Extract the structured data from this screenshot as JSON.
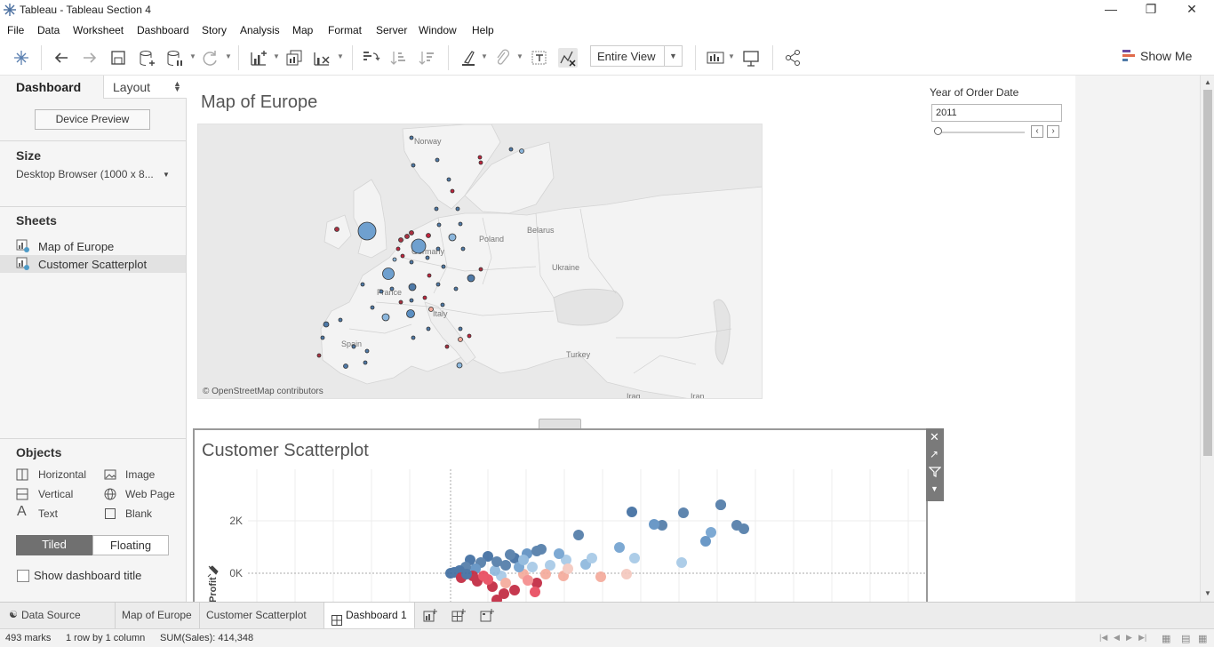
{
  "window": {
    "title": "Tableau - Tableau Section 4"
  },
  "menu": [
    "File",
    "Data",
    "Worksheet",
    "Dashboard",
    "Story",
    "Analysis",
    "Map",
    "Format",
    "Server",
    "Window",
    "Help"
  ],
  "toolbar": {
    "fit_value": "Entire View",
    "show_me": "Show Me"
  },
  "left_panel": {
    "tabs": {
      "dashboard": "Dashboard",
      "layout": "Layout"
    },
    "device_preview": "Device Preview",
    "size_heading": "Size",
    "size_value": "Desktop Browser (1000 x 8...",
    "sheets_heading": "Sheets",
    "sheets": [
      "Map of Europe",
      "Customer Scatterplot"
    ],
    "objects_heading": "Objects",
    "objects": {
      "horizontal": "Horizontal",
      "image": "Image",
      "vertical": "Vertical",
      "web_page": "Web Page",
      "text": "Text",
      "blank": "Blank"
    },
    "tiled": "Tiled",
    "floating": "Floating",
    "show_title": "Show dashboard title"
  },
  "map": {
    "title": "Map of Europe",
    "attribution": "© OpenStreetMap contributors",
    "labels": {
      "norway": "Norway",
      "belarus": "Belarus",
      "poland": "Poland",
      "germany": "Germany",
      "ukraine": "Ukraine",
      "france": "France",
      "italy": "Italy",
      "spain": "Spain",
      "turkey": "Turkey",
      "iraq": "Iraq",
      "iran": "Iran"
    }
  },
  "filter": {
    "label": "Year of Order Date",
    "value": "2011"
  },
  "scatter": {
    "title": "Customer Scatterplot",
    "ylabel": "Profit",
    "yticks": [
      "2K",
      "0K"
    ]
  },
  "tabs": {
    "data_source": "Data Source",
    "sheets": [
      "Map of Europe",
      "Customer Scatterplot"
    ],
    "dashboard": "Dashboard 1"
  },
  "status": {
    "marks": "493 marks",
    "rows_cols": "1 row by 1 column",
    "sum": "SUM(Sales): 414,348"
  },
  "colors": {
    "accent_blue": "#4e79a7",
    "light_blue": "#a5c8e6",
    "red": "#c0243c",
    "pink": "#f4a99a",
    "tiled_bg": "#707070"
  }
}
